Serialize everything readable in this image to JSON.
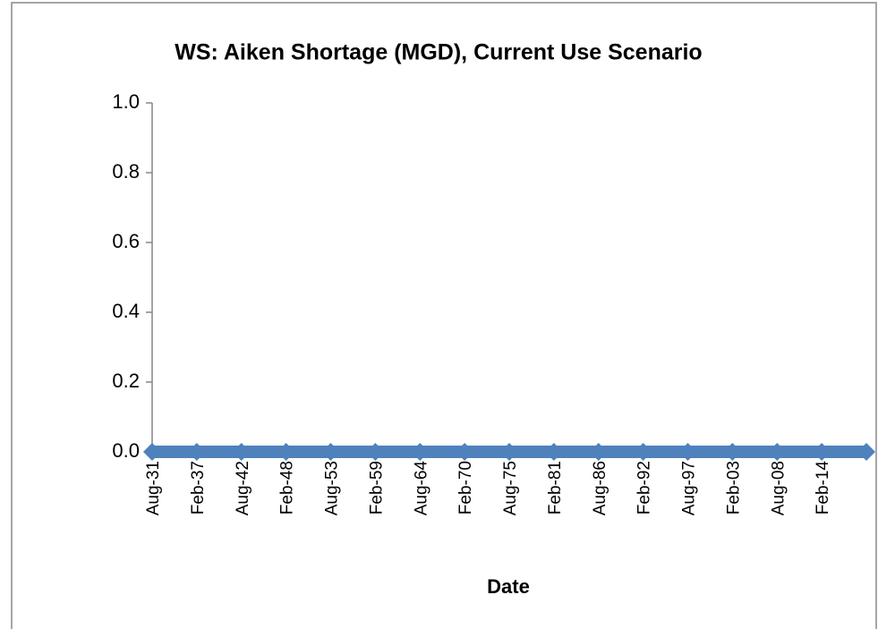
{
  "chart_data": {
    "type": "line",
    "title": "WS: Aiken Shortage (MGD), Current Use Scenario",
    "x_label": "Date",
    "categories": [
      "Aug-31",
      "Feb-37",
      "Aug-42",
      "Feb-48",
      "Aug-53",
      "Feb-59",
      "Aug-64",
      "Feb-70",
      "Aug-75",
      "Feb-81",
      "Aug-86",
      "Feb-92",
      "Aug-97",
      "Feb-03",
      "Aug-08",
      "Feb-14",
      null
    ],
    "series": [
      {
        "name": "Aiken Shortage",
        "color": "#4f81bd",
        "values": [
          0,
          0,
          0,
          0,
          0,
          0,
          0,
          0,
          0,
          0,
          0,
          0,
          0,
          0,
          0,
          0,
          0
        ]
      }
    ],
    "ylim": [
      0,
      1
    ],
    "yticks": [
      {
        "value": 0,
        "label": "0.0"
      },
      {
        "value": 0.2,
        "label": "0.2"
      },
      {
        "value": 0.4,
        "label": "0.4"
      },
      {
        "value": 0.6,
        "label": "0.6"
      },
      {
        "value": 0.8,
        "label": "0.8"
      },
      {
        "value": 1,
        "label": "1.0"
      }
    ]
  }
}
